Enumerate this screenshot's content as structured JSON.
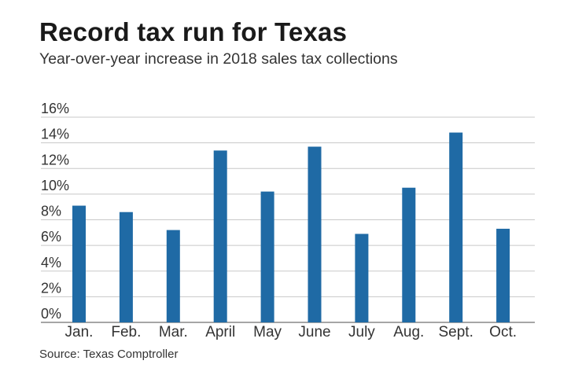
{
  "chart_data": {
    "type": "bar",
    "title": "Record tax run for Texas",
    "subtitle": "Year-over-year increase in 2018 sales tax collections",
    "source": "Source: Texas Comptroller",
    "categories": [
      "Jan.",
      "Feb.",
      "Mar.",
      "April",
      "May",
      "June",
      "July",
      "Aug.",
      "Sept.",
      "Oct."
    ],
    "values": [
      9.1,
      8.6,
      7.2,
      13.4,
      10.2,
      13.7,
      6.9,
      10.5,
      14.8,
      7.3
    ],
    "ylim": [
      0,
      16
    ],
    "yticks": [
      0,
      2,
      4,
      6,
      8,
      10,
      12,
      14,
      16
    ],
    "ytick_labels": [
      "0%",
      "2%",
      "4%",
      "6%",
      "8%",
      "10%",
      "12%",
      "14%",
      "16%"
    ],
    "xlabel": "",
    "ylabel": "",
    "grid": true,
    "bar_color": "#1f6aa5",
    "grid_color": "#c8c8c8",
    "axis_color": "#888888"
  }
}
